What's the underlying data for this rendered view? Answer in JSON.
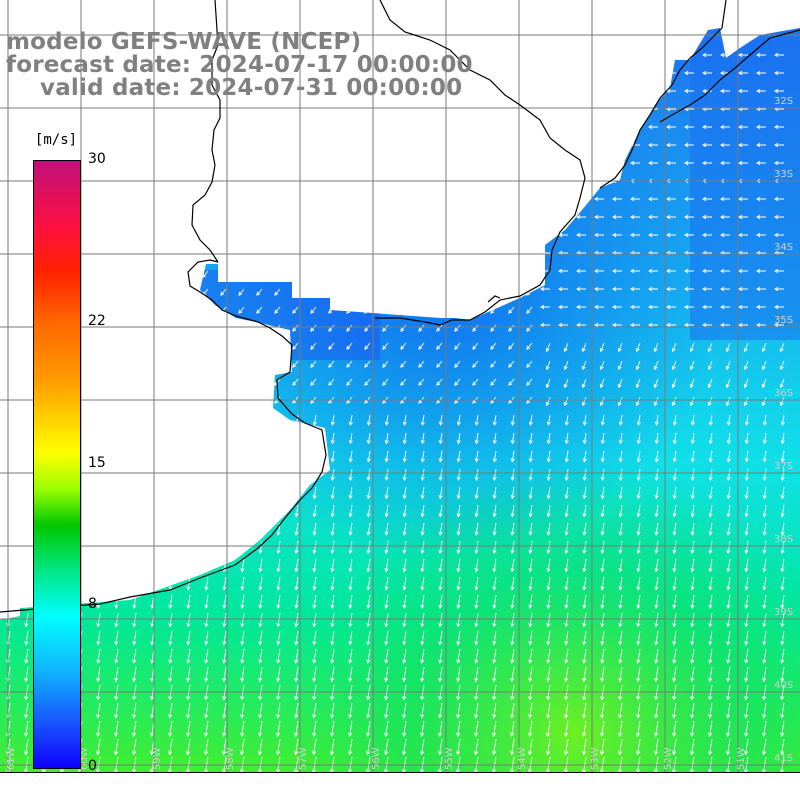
{
  "title": {
    "model": "modelo GEFS-WAVE (NCEP)",
    "forecast": "forecast date: 2024-07-17 00:00:00",
    "valid": "valid date: 2024-07-31 00:00:00"
  },
  "colorbar": {
    "unit": "[m/s]",
    "ticks": [
      {
        "value": 30,
        "label": "30"
      },
      {
        "value": 22,
        "label": "22"
      },
      {
        "value": 15,
        "label": "15"
      },
      {
        "value": 8,
        "label": "8"
      },
      {
        "value": 0,
        "label": "0"
      }
    ],
    "range": [
      0,
      30
    ]
  },
  "latitude_labels": [
    "32S",
    "33S",
    "34S",
    "35S",
    "36S",
    "37S",
    "38S",
    "39S",
    "40S",
    "41S"
  ],
  "longitude_labels": [
    "61W",
    "60W",
    "59W",
    "58W",
    "57W",
    "56W",
    "55W",
    "54W",
    "53W",
    "52W",
    "51W"
  ],
  "colors": {
    "land": "#ffffff",
    "coast": "#000000",
    "grid": "#7a7a7a",
    "arrow": "#ffffff"
  },
  "field": {
    "variable": "wind speed",
    "direction": "mostly southward, north-east to south-west near coast"
  }
}
